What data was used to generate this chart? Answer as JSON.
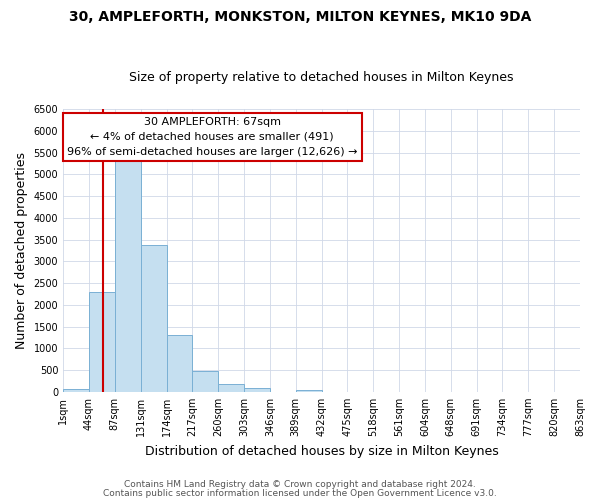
{
  "title": "30, AMPLEFORTH, MONKSTON, MILTON KEYNES, MK10 9DA",
  "subtitle": "Size of property relative to detached houses in Milton Keynes",
  "xlabel": "Distribution of detached houses by size in Milton Keynes",
  "ylabel": "Number of detached properties",
  "bar_values": [
    75,
    2300,
    5430,
    3380,
    1310,
    480,
    185,
    95,
    0,
    50,
    0,
    0,
    0,
    0,
    0,
    0,
    0,
    0,
    0,
    0
  ],
  "bin_labels": [
    "1sqm",
    "44sqm",
    "87sqm",
    "131sqm",
    "174sqm",
    "217sqm",
    "260sqm",
    "303sqm",
    "346sqm",
    "389sqm",
    "432sqm",
    "475sqm",
    "518sqm",
    "561sqm",
    "604sqm",
    "648sqm",
    "691sqm",
    "734sqm",
    "777sqm",
    "820sqm",
    "863sqm"
  ],
  "bar_color": "#c5dff0",
  "bar_edge_color": "#7ab0d4",
  "annotation_line1": "30 AMPLEFORTH: 67sqm",
  "annotation_line2": "← 4% of detached houses are smaller (491)",
  "annotation_line3": "96% of semi-detached houses are larger (12,626) →",
  "annotation_box_color": "#ffffff",
  "annotation_box_edge_color": "#cc0000",
  "red_line_color": "#cc0000",
  "ylim": [
    0,
    6500
  ],
  "yticks": [
    0,
    500,
    1000,
    1500,
    2000,
    2500,
    3000,
    3500,
    4000,
    4500,
    5000,
    5500,
    6000,
    6500
  ],
  "footer_line1": "Contains HM Land Registry data © Crown copyright and database right 2024.",
  "footer_line2": "Contains public sector information licensed under the Open Government Licence v3.0.",
  "bg_color": "#ffffff",
  "grid_color": "#d0d8e8",
  "title_fontsize": 10,
  "subtitle_fontsize": 9,
  "axis_label_fontsize": 9,
  "tick_fontsize": 7,
  "annotation_fontsize": 8,
  "footer_fontsize": 6.5
}
